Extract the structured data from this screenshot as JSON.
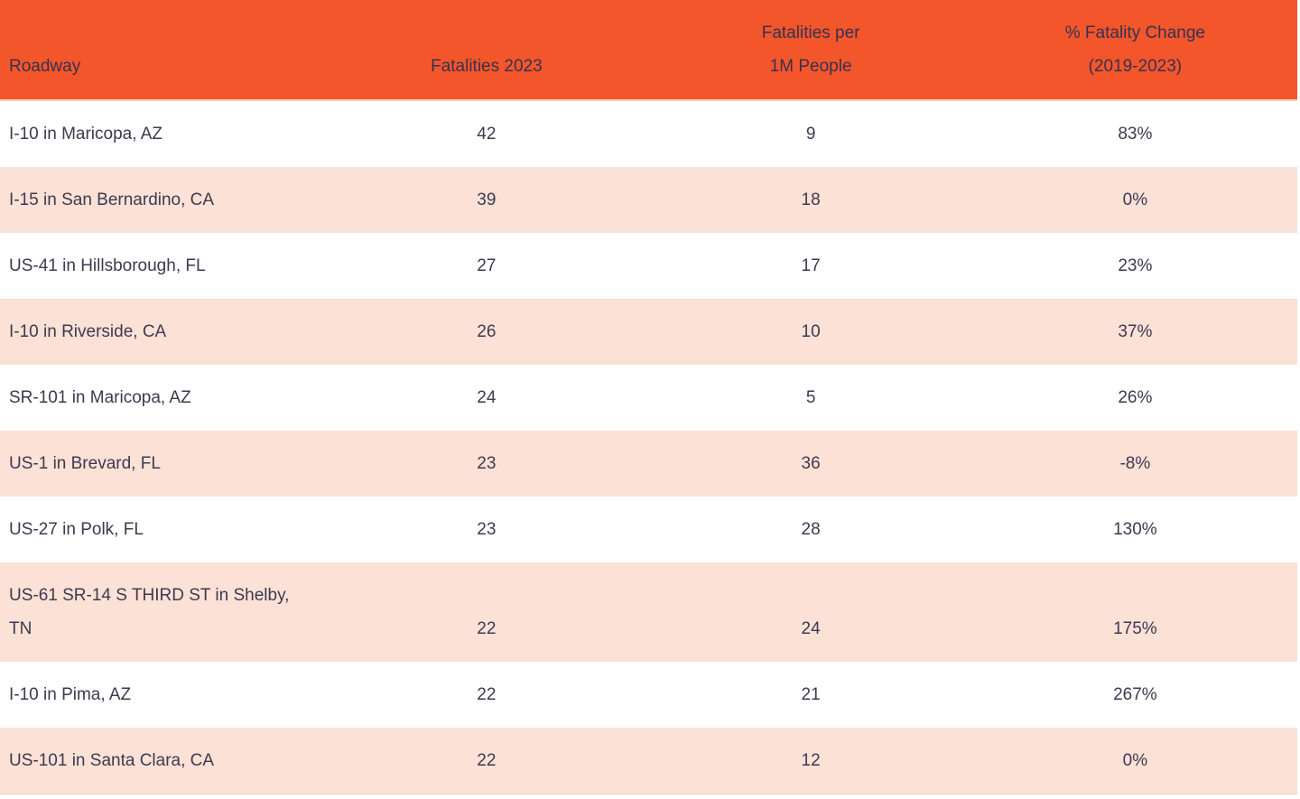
{
  "colors": {
    "header_bg": "#F4562B",
    "row_alt_bg": "#FCE1D7",
    "header_text": "#363150",
    "body_text": "#3C3A4F"
  },
  "table": {
    "header": {
      "roadway": "Roadway",
      "fatalities_2023": "Fatalities 2023",
      "per_1m_line1": "Fatalities per",
      "per_1m_line2": "1M People",
      "change_line1": "% Fatality Change",
      "change_line2": "(2019-2023)"
    },
    "rows": [
      {
        "roadway": "I-10 in Maricopa, AZ",
        "fatalities_2023": "42",
        "per_1m": "9",
        "change": "83%"
      },
      {
        "roadway": "I-15 in San Bernardino, CA",
        "fatalities_2023": "39",
        "per_1m": "18",
        "change": "0%"
      },
      {
        "roadway": "US-41 in Hillsborough, FL",
        "fatalities_2023": "27",
        "per_1m": "17",
        "change": "23%"
      },
      {
        "roadway": "I-10 in Riverside, CA",
        "fatalities_2023": "26",
        "per_1m": "10",
        "change": "37%"
      },
      {
        "roadway": "SR-101 in Maricopa, AZ",
        "fatalities_2023": "24",
        "per_1m": "5",
        "change": "26%"
      },
      {
        "roadway": "US-1 in Brevard, FL",
        "fatalities_2023": "23",
        "per_1m": "36",
        "change": "-8%"
      },
      {
        "roadway": "US-27 in Polk, FL",
        "fatalities_2023": "23",
        "per_1m": "28",
        "change": "130%"
      },
      {
        "roadway": "US-61 SR-14 S THIRD ST in Shelby, TN",
        "fatalities_2023": "22",
        "per_1m": "24",
        "change": "175%"
      },
      {
        "roadway": "I-10 in Pima, AZ",
        "fatalities_2023": "22",
        "per_1m": "21",
        "change": "267%"
      },
      {
        "roadway": "US-101 in Santa Clara, CA",
        "fatalities_2023": "22",
        "per_1m": "12",
        "change": "0%"
      }
    ]
  },
  "chart_data": {
    "type": "table",
    "columns": [
      "Roadway",
      "Fatalities 2023",
      "Fatalities per 1M People",
      "% Fatality Change (2019-2023)"
    ],
    "rows": [
      [
        "I-10 in Maricopa, AZ",
        42,
        9,
        "83%"
      ],
      [
        "I-15 in San Bernardino, CA",
        39,
        18,
        "0%"
      ],
      [
        "US-41 in Hillsborough, FL",
        27,
        17,
        "23%"
      ],
      [
        "I-10 in Riverside, CA",
        26,
        10,
        "37%"
      ],
      [
        "SR-101 in Maricopa, AZ",
        24,
        5,
        "26%"
      ],
      [
        "US-1 in Brevard, FL",
        23,
        36,
        "-8%"
      ],
      [
        "US-27 in Polk, FL",
        23,
        28,
        "130%"
      ],
      [
        "US-61 SR-14 S THIRD ST in Shelby, TN",
        22,
        24,
        "175%"
      ],
      [
        "I-10 in Pima, AZ",
        22,
        21,
        "267%"
      ],
      [
        "US-101 in Santa Clara, CA",
        22,
        12,
        "0%"
      ]
    ]
  }
}
